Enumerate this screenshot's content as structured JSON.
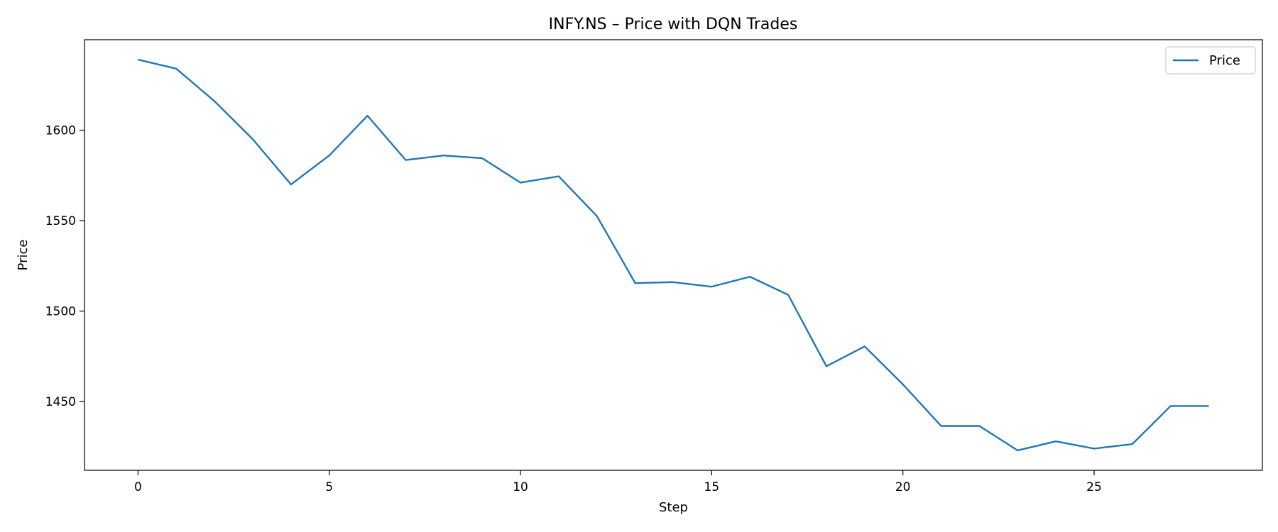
{
  "chart_data": {
    "type": "line",
    "title": "INFY.NS – Price with DQN Trades",
    "xlabel": "Step",
    "ylabel": "Price",
    "xlim": [
      -1.4,
      29.4
    ],
    "ylim": [
      1412,
      1650
    ],
    "xticks": [
      0,
      5,
      10,
      15,
      20,
      25
    ],
    "yticks": [
      1450,
      1500,
      1550,
      1600
    ],
    "grid": false,
    "legend_position": "top-right",
    "series": [
      {
        "name": "Price",
        "color": "#1f77b4",
        "x": [
          0,
          1,
          2,
          3,
          4,
          5,
          6,
          7,
          8,
          9,
          10,
          11,
          12,
          13,
          14,
          15,
          16,
          17,
          18,
          19,
          20,
          21,
          22,
          23,
          24,
          25,
          26,
          27,
          28
        ],
        "y": [
          1639,
          1634,
          1616,
          1595,
          1570,
          1586,
          1608,
          1583.5,
          1586,
          1584.5,
          1571,
          1574.5,
          1552.5,
          1515.5,
          1516,
          1513.5,
          1519,
          1509,
          1469.5,
          1480.5,
          1459.5,
          1436.5,
          1436.5,
          1423,
          1428,
          1424,
          1426.5,
          1447.5,
          1447.5
        ]
      }
    ]
  }
}
